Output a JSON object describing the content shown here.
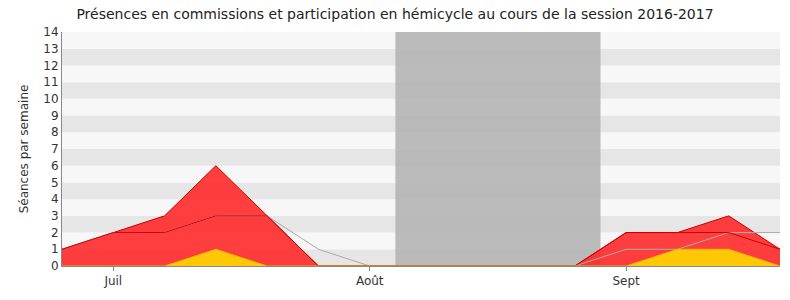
{
  "chart_data": {
    "type": "area",
    "title": "Présences en commissions et participation en hémicycle au cours de la session 2016-2017",
    "y_label": "Séances par semaine",
    "categories": [
      null,
      "Juil",
      null,
      null,
      null,
      null,
      "Août",
      null,
      null,
      null,
      null,
      "Sept",
      null,
      null,
      null
    ],
    "series": [
      {
        "type": "area",
        "color": "#ff2a2a",
        "values": [
          1,
          2,
          3,
          6,
          3,
          0,
          0,
          0,
          0,
          0,
          0,
          2,
          2,
          3,
          1
        ]
      },
      {
        "type": "line",
        "color": "#aaaaaa",
        "values": [
          1,
          2,
          2,
          3,
          3,
          1,
          0,
          0,
          0,
          0,
          0,
          1,
          1,
          2,
          2
        ]
      },
      {
        "type": "line",
        "color": "#cc0000",
        "values": [
          1,
          2,
          2,
          3,
          3,
          0,
          0,
          0,
          0,
          0,
          0,
          2,
          2,
          2,
          1
        ]
      },
      {
        "type": "area",
        "color": "#ffd700",
        "values": [
          0,
          0,
          0,
          1,
          0,
          0,
          0,
          0,
          0,
          0,
          0,
          0,
          1,
          1,
          0
        ]
      }
    ],
    "shaded": {
      "from": 6.5,
      "to": 10.5,
      "color": "#b0b0b0"
    },
    "ylim": [
      0,
      14
    ],
    "yticks": [
      0,
      1,
      2,
      3,
      4,
      5,
      6,
      7,
      8,
      9,
      10,
      11,
      12,
      13,
      14
    ],
    "grid": true
  }
}
